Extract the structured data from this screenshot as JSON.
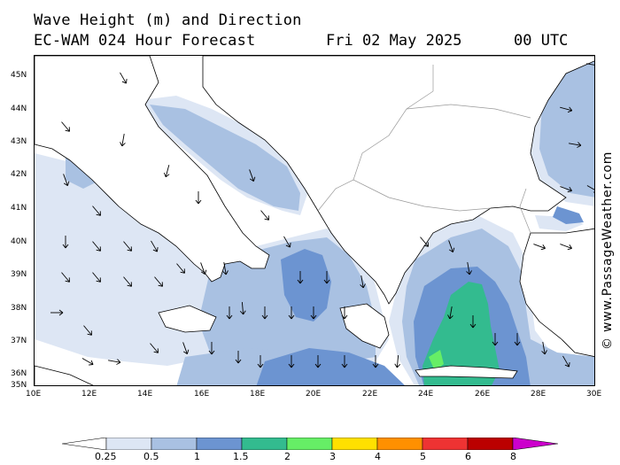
{
  "header": {
    "line1": "Wave Height (m) and Direction",
    "line2": "EC-WAM 024 Hour Forecast",
    "date": "Fri 02 May 2025",
    "time": "00 UTC"
  },
  "credit": "© www.PassageWeather.com",
  "axes": {
    "lat_labels": [
      "45N",
      "44N",
      "43N",
      "42N",
      "41N",
      "40N",
      "39N",
      "38N",
      "37N",
      "36N",
      "35N"
    ],
    "lon_labels": [
      "10E",
      "12E",
      "14E",
      "16E",
      "18E",
      "20E",
      "22E",
      "24E",
      "26E",
      "28E",
      "30E"
    ]
  },
  "legend": {
    "labels": [
      "0.25",
      "0.5",
      "1",
      "1.5",
      "2",
      "3",
      "4",
      "5",
      "6",
      "8"
    ],
    "colors": [
      "#ffffff",
      "#dde6f4",
      "#a9c1e2",
      "#6c94d1",
      "#33bb8f",
      "#66ee66",
      "#ffe000",
      "#ff9000",
      "#ee3333",
      "#bb0000",
      "#cc00cc"
    ]
  },
  "palette": {
    "land": "#ffffff",
    "coast": "#000000",
    "border": "#999999",
    "band_lt": "#dde6f4",
    "band_05": "#a9c1e2",
    "band_1": "#6c94d1",
    "band_15": "#33bb8f",
    "band_2": "#66ee66"
  }
}
